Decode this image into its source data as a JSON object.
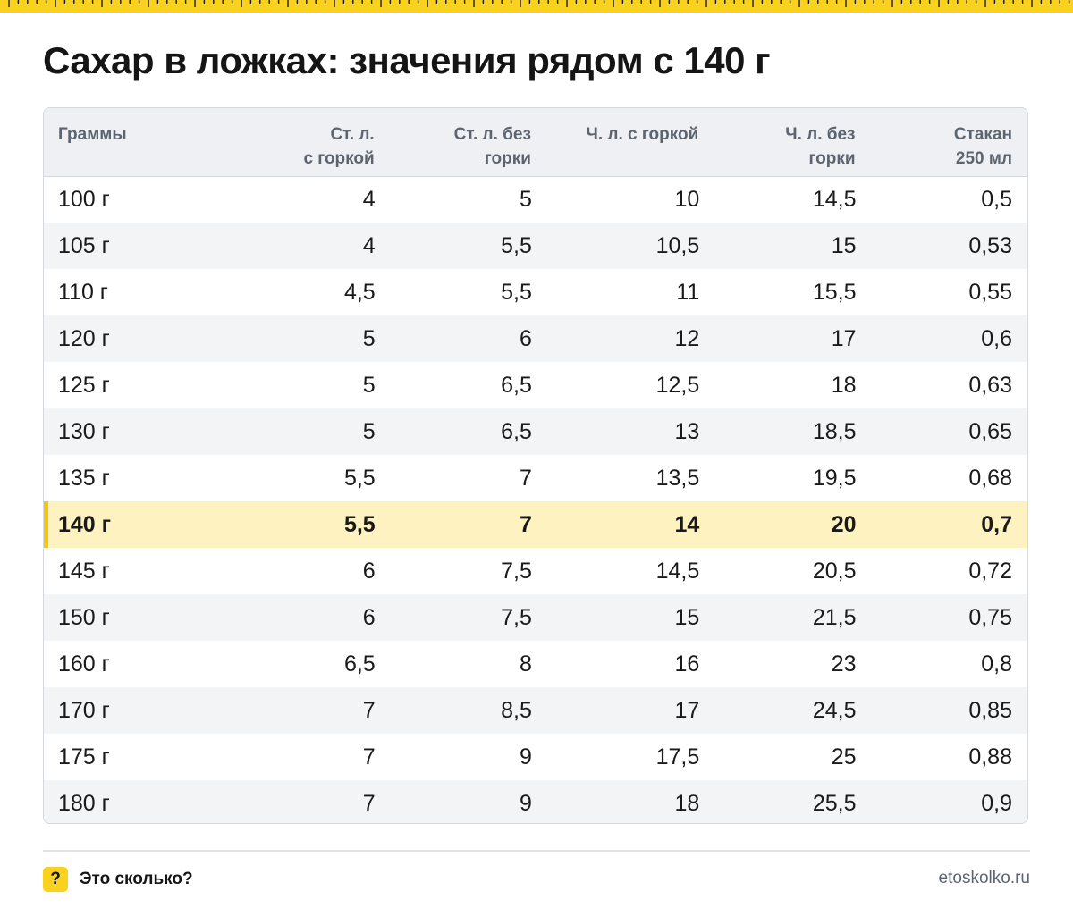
{
  "title": "Сахар в ложках: значения рядом с 140 г",
  "colors": {
    "accent": "#f8d21c",
    "highlight_row": "#fdf2c0",
    "header_bg": "#eef0f3"
  },
  "table": {
    "headers": [
      {
        "line1": "Граммы",
        "line2": ""
      },
      {
        "line1": "Ст. л.",
        "line2": "с горкой"
      },
      {
        "line1": "Ст. л. без",
        "line2": "горки"
      },
      {
        "line1": "Ч. л. с горкой",
        "line2": ""
      },
      {
        "line1": "Ч. л. без",
        "line2": "горки"
      },
      {
        "line1": "Стакан",
        "line2": "250 мл"
      }
    ],
    "highlight_row_index": 7,
    "rows": [
      [
        "100 г",
        "4",
        "5",
        "10",
        "14,5",
        "0,5"
      ],
      [
        "105 г",
        "4",
        "5,5",
        "10,5",
        "15",
        "0,53"
      ],
      [
        "110 г",
        "4,5",
        "5,5",
        "11",
        "15,5",
        "0,55"
      ],
      [
        "120 г",
        "5",
        "6",
        "12",
        "17",
        "0,6"
      ],
      [
        "125 г",
        "5",
        "6,5",
        "12,5",
        "18",
        "0,63"
      ],
      [
        "130 г",
        "5",
        "6,5",
        "13",
        "18,5",
        "0,65"
      ],
      [
        "135 г",
        "5,5",
        "7",
        "13,5",
        "19,5",
        "0,68"
      ],
      [
        "140 г",
        "5,5",
        "7",
        "14",
        "20",
        "0,7"
      ],
      [
        "145 г",
        "6",
        "7,5",
        "14,5",
        "20,5",
        "0,72"
      ],
      [
        "150 г",
        "6",
        "7,5",
        "15",
        "21,5",
        "0,75"
      ],
      [
        "160 г",
        "6,5",
        "8",
        "16",
        "23",
        "0,8"
      ],
      [
        "170 г",
        "7",
        "8,5",
        "17",
        "24,5",
        "0,85"
      ],
      [
        "175 г",
        "7",
        "9",
        "17,5",
        "25",
        "0,88"
      ],
      [
        "180 г",
        "7",
        "9",
        "18",
        "25,5",
        "0,9"
      ]
    ]
  },
  "footer": {
    "badge": "?",
    "brand": "Это сколько?",
    "url": "etoskolko.ru"
  }
}
